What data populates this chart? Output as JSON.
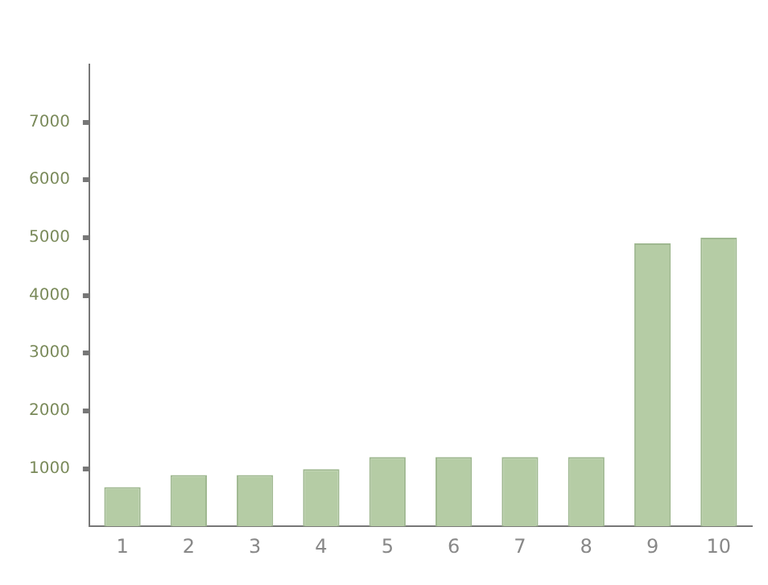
{
  "chart_data": {
    "type": "bar",
    "categories": [
      "1",
      "2",
      "3",
      "4",
      "5",
      "6",
      "7",
      "8",
      "9",
      "10"
    ],
    "values": [
      680,
      890,
      890,
      990,
      1200,
      1200,
      1200,
      1200,
      4900,
      5000
    ],
    "color": "#b5cca5",
    "ylim": [
      0,
      8000
    ],
    "yticks": [
      1000,
      2000,
      3000,
      4000,
      5000,
      6000,
      7000
    ],
    "grid": false,
    "legend": false
  }
}
